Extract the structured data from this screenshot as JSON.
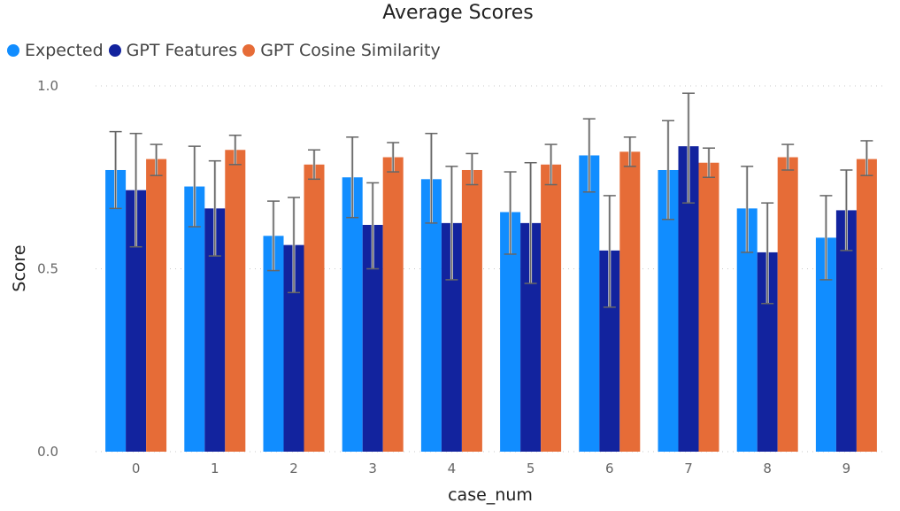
{
  "chart_data": {
    "type": "bar",
    "title": "Average Scores",
    "xlabel": "case_num",
    "ylabel": "Score",
    "ylim": [
      0,
      1
    ],
    "yticks": [
      "0.0",
      "0.5",
      "1.0"
    ],
    "grid": true,
    "legend_position": "top-left",
    "categories": [
      "0",
      "1",
      "2",
      "3",
      "4",
      "5",
      "6",
      "7",
      "8",
      "9"
    ],
    "series": [
      {
        "name": "Expected",
        "color": "#118DFF",
        "values": [
          0.77,
          0.725,
          0.59,
          0.75,
          0.745,
          0.655,
          0.81,
          0.77,
          0.665,
          0.585
        ],
        "error_low": [
          0.665,
          0.615,
          0.495,
          0.64,
          0.625,
          0.54,
          0.71,
          0.635,
          0.545,
          0.47
        ],
        "error_high": [
          0.875,
          0.835,
          0.685,
          0.86,
          0.87,
          0.765,
          0.91,
          0.905,
          0.78,
          0.7
        ]
      },
      {
        "name": "GPT Features",
        "color": "#12239E",
        "values": [
          0.715,
          0.665,
          0.565,
          0.62,
          0.625,
          0.625,
          0.55,
          0.835,
          0.545,
          0.66
        ],
        "error_low": [
          0.56,
          0.535,
          0.435,
          0.5,
          0.47,
          0.46,
          0.395,
          0.68,
          0.405,
          0.55
        ],
        "error_high": [
          0.87,
          0.795,
          0.695,
          0.735,
          0.78,
          0.79,
          0.7,
          0.98,
          0.68,
          0.77
        ]
      },
      {
        "name": "GPT Cosine Similarity",
        "color": "#E66C37",
        "values": [
          0.8,
          0.825,
          0.785,
          0.805,
          0.77,
          0.785,
          0.82,
          0.79,
          0.805,
          0.8
        ],
        "error_low": [
          0.755,
          0.785,
          0.745,
          0.765,
          0.73,
          0.73,
          0.78,
          0.75,
          0.77,
          0.755
        ],
        "error_high": [
          0.84,
          0.865,
          0.825,
          0.845,
          0.815,
          0.84,
          0.86,
          0.83,
          0.84,
          0.85
        ]
      }
    ]
  }
}
